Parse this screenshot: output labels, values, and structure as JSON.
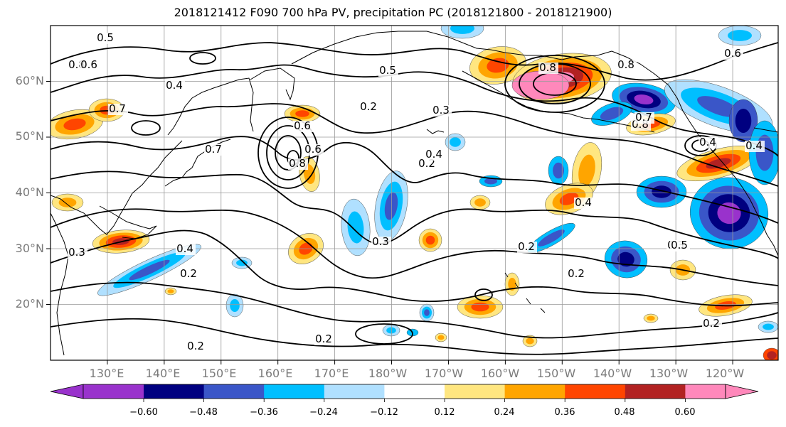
{
  "title": "2018121412 F090 700 hPa PV, precipitation PC (2018121800 - 2018121900)",
  "lat_labels": [
    "60°N",
    "50°N",
    "40°N",
    "30°N",
    "20°N"
  ],
  "lon_labels": [
    "130°E",
    "140°E",
    "150°E",
    "160°E",
    "170°E",
    "180°W",
    "170°W",
    "160°W",
    "150°W",
    "140°W",
    "130°W",
    "120°W"
  ],
  "map_extent": {
    "lon_min": 120,
    "lon_max": 248,
    "lat_min": 10,
    "lat_max": 70
  },
  "colorbar": {
    "ticks": [
      "−0.60",
      "−0.48",
      "−0.36",
      "−0.24",
      "−0.12",
      "0.12",
      "0.24",
      "0.36",
      "0.48",
      "0.60"
    ],
    "colors": [
      "#9932cc",
      "#000080",
      "#3a56c8",
      "#00bfff",
      "#b0e0ff",
      "#ffffff",
      "#ffe680",
      "#ffa500",
      "#ff4500",
      "#b22222",
      "#ff88bb"
    ]
  },
  "contour_labels": [
    "0.5",
    "0.8",
    "0.6",
    "0.4",
    "0.7",
    "0.6",
    "0.5",
    "0.2",
    "0.3",
    "0.7",
    "0.6",
    "0.8",
    "0.4",
    "0.2",
    "0.4",
    "0.2",
    "0.3",
    "0.2",
    "0.2",
    "0.8",
    "0.8",
    "0.4",
    "0.2",
    "0.3",
    "0.5",
    "0.2",
    "0.3",
    "0.2",
    "0.6",
    "0.4",
    "0.4",
    "0.8",
    "0.7"
  ]
}
